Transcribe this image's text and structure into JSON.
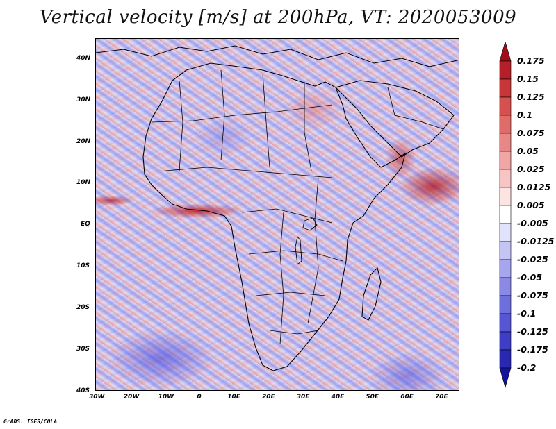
{
  "title": "Vertical velocity [m/s] at 200hPa, VT: 2020053009",
  "lat_labels": [
    "40N",
    "30N",
    "20N",
    "10N",
    "EQ",
    "10S",
    "20S",
    "30S",
    "40S"
  ],
  "lon_labels": [
    "30W",
    "20W",
    "10W",
    "0",
    "10E",
    "20E",
    "30E",
    "40E",
    "50E",
    "60E",
    "70E"
  ],
  "colorbar": {
    "levels": [
      "0.175",
      "0.15",
      "0.125",
      "0.1",
      "0.075",
      "0.05",
      "0.025",
      "0.0125",
      "0.005",
      "-0.005",
      "-0.0125",
      "-0.025",
      "-0.05",
      "-0.075",
      "-0.1",
      "-0.125",
      "-0.175",
      "-0.2"
    ],
    "colors": [
      "#9e0f1a",
      "#b51f27",
      "#c8363a",
      "#d6504f",
      "#e06c6a",
      "#e88886",
      "#f0a6a4",
      "#f7c6c4",
      "#fce4e3",
      "#ffffff",
      "#e2e2fb",
      "#c5c5f5",
      "#a6a6ee",
      "#8a8ae6",
      "#6e6edd",
      "#5656d3",
      "#3d3dc6",
      "#2828b3",
      "#14149a"
    ]
  },
  "footer": "GrADS: IGES/COLA"
}
